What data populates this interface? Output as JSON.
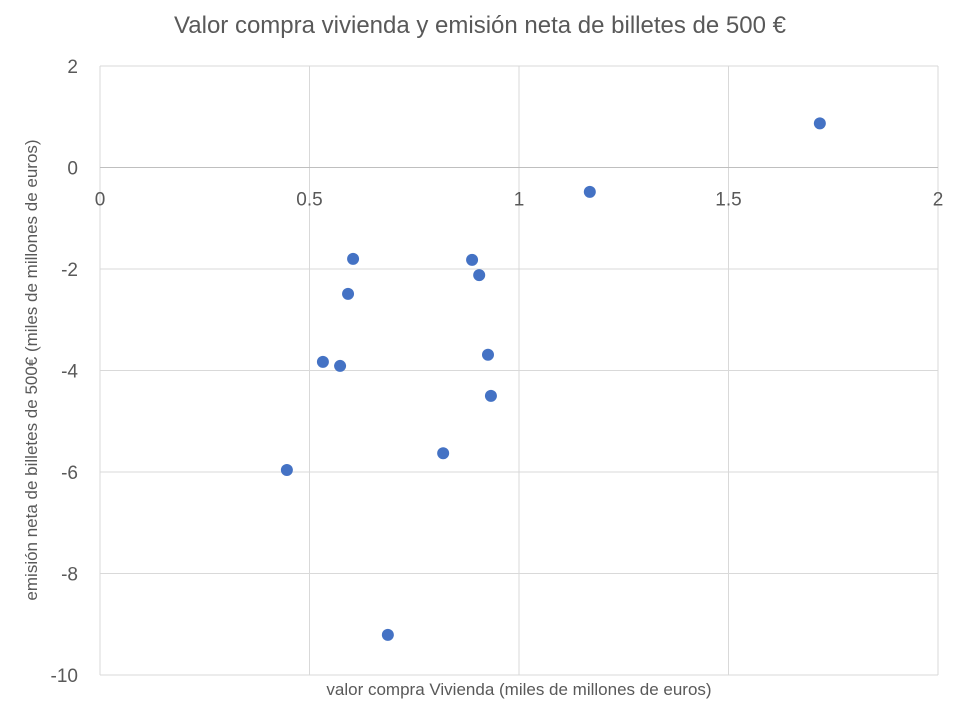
{
  "chart_data": {
    "type": "scatter",
    "title": "Valor compra vivienda y emisión neta de billetes de 500 €",
    "xlabel": "valor compra Vivienda (miles de millones de euros)",
    "ylabel": "emisión neta de billetes de 500€ (miles de millones de euros)",
    "xlim": [
      0,
      2
    ],
    "ylim": [
      -10,
      2
    ],
    "xticks": [
      0,
      0.5,
      1,
      1.5,
      2
    ],
    "xtick_labels": [
      "0",
      "0.5",
      "1",
      "1.5",
      "2"
    ],
    "yticks": [
      2,
      0,
      -2,
      -4,
      -6,
      -8,
      -10
    ],
    "ytick_labels": [
      "2",
      "0",
      "-2",
      "-4",
      "-6",
      "-8",
      "-10"
    ],
    "grid": true,
    "color": "#4472C4",
    "points": [
      {
        "x": 1.718,
        "y": 0.87
      },
      {
        "x": 1.169,
        "y": -0.48
      },
      {
        "x": 0.604,
        "y": -1.8
      },
      {
        "x": 0.888,
        "y": -1.82
      },
      {
        "x": 0.905,
        "y": -2.12
      },
      {
        "x": 0.592,
        "y": -2.49
      },
      {
        "x": 0.926,
        "y": -3.69
      },
      {
        "x": 0.532,
        "y": -3.83
      },
      {
        "x": 0.573,
        "y": -3.91
      },
      {
        "x": 0.933,
        "y": -4.5
      },
      {
        "x": 0.819,
        "y": -5.63
      },
      {
        "x": 0.446,
        "y": -5.96
      },
      {
        "x": 0.687,
        "y": -9.21
      }
    ]
  }
}
